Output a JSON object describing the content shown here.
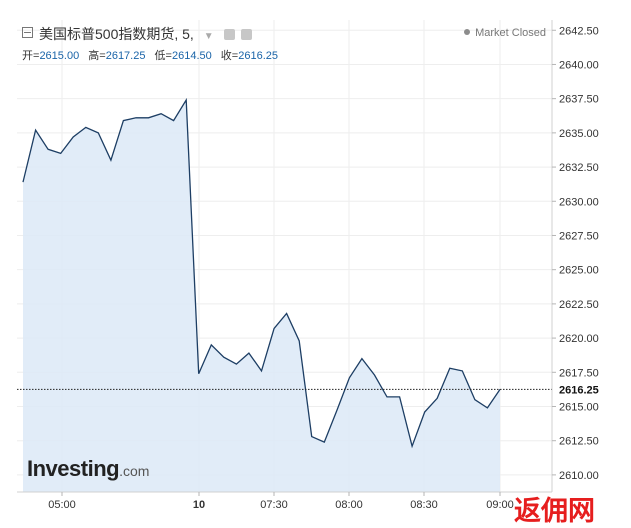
{
  "header": {
    "title": "美国标普500指数期货, 5,",
    "status": "Market Closed",
    "ohlc": [
      {
        "label": "开=",
        "value": "2615.00"
      },
      {
        "label": "高=",
        "value": "2617.25"
      },
      {
        "label": "低=",
        "value": "2614.50"
      },
      {
        "label": "收=",
        "value": "2616.25"
      }
    ]
  },
  "logo": {
    "main": "Investing",
    "suffix": ".com"
  },
  "watermark": "返佣网",
  "chart_data": {
    "type": "area",
    "x_ticks": [
      "05:00",
      "10",
      "07:30",
      "08:00",
      "08:30",
      "09:00"
    ],
    "y_ticks": [
      "2642.50",
      "2640.00",
      "2637.50",
      "2635.00",
      "2632.50",
      "2630.00",
      "2627.50",
      "2625.00",
      "2622.50",
      "2620.00",
      "2617.50",
      "2615.00",
      "2612.50",
      "2610.00"
    ],
    "ylim": [
      2608.75,
      2643.25
    ],
    "last_value": 2616.25,
    "last_label": "2616.25",
    "grid": true,
    "values": [
      2631.4,
      2635.2,
      2633.8,
      2633.5,
      2634.7,
      2635.4,
      2635.0,
      2633.0,
      2635.9,
      2636.1,
      2636.1,
      2636.4,
      2635.9,
      2637.4,
      2617.4,
      2619.5,
      2618.6,
      2618.1,
      2618.9,
      2617.6,
      2620.7,
      2621.8,
      2619.8,
      2612.8,
      2612.4,
      2614.7,
      2617.1,
      2618.5,
      2617.3,
      2615.7,
      2615.7,
      2612.1,
      2614.6,
      2615.6,
      2617.8,
      2617.6,
      2615.5,
      2614.9,
      2616.25
    ],
    "colors": {
      "line": "#1d3e64",
      "fill": "#dce9f7",
      "grid": "#eeeeee",
      "axis": "#d0d0d0",
      "last_line": "#222222"
    }
  }
}
